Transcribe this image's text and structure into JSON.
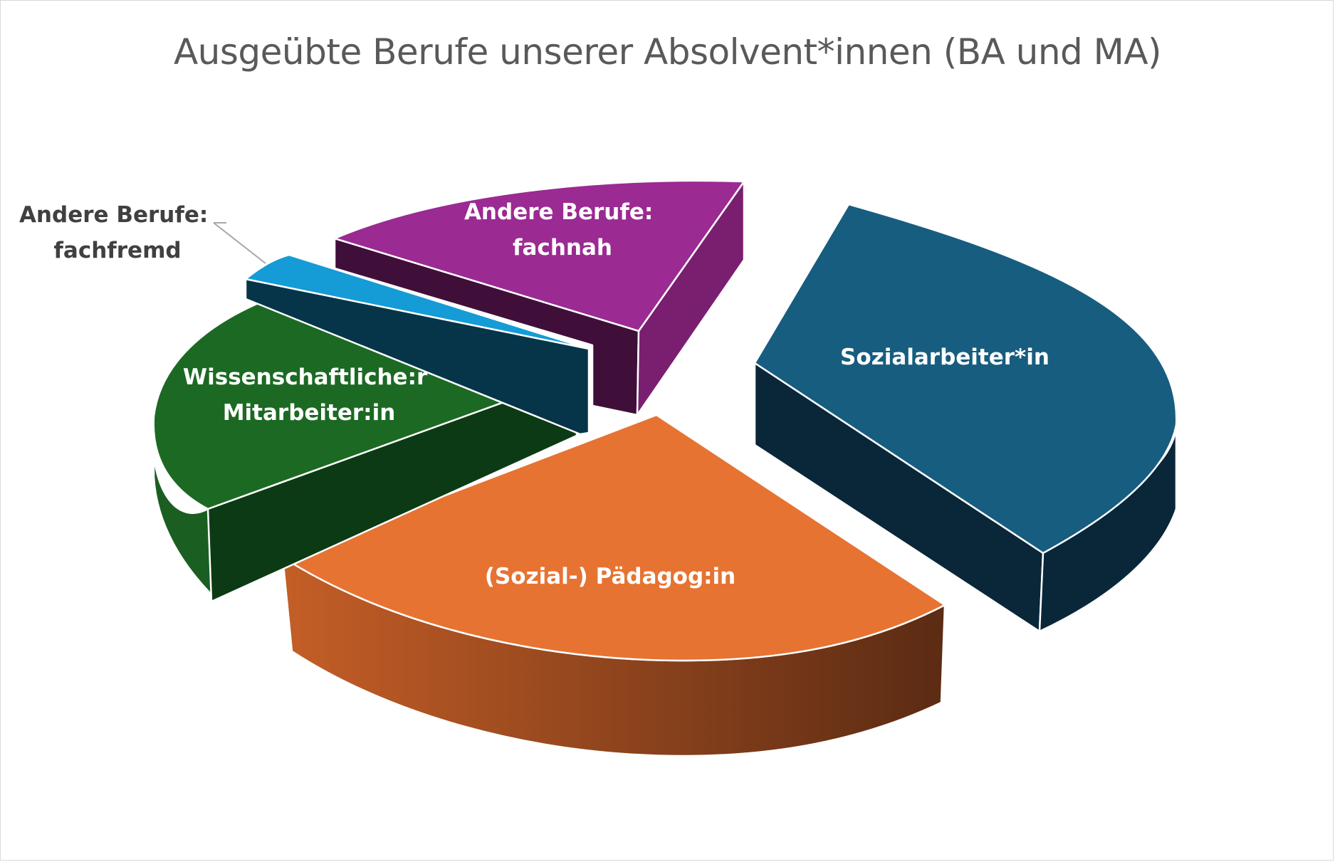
{
  "chart_data": {
    "type": "pie",
    "title": "Ausgeübte Berufe unserer Absolvent*innen (BA und MA)",
    "three_d": true,
    "exploded": true,
    "legend": "none",
    "slices": [
      {
        "label_lines": [
          "Sozialarbeiter*in"
        ],
        "value": 36,
        "color": "#175d7f",
        "side_color": "#0a2739"
      },
      {
        "label_lines": [
          "(Sozial-) Pädagog:in"
        ],
        "value": 28,
        "color": "#e67332",
        "side_color": "#5e2c14",
        "side_color_light": "#c25b26"
      },
      {
        "label_lines": [
          "Wissenschaftliche:r",
          "Mitarbeiter:in"
        ],
        "value": 18,
        "color": "#1c6923",
        "side_color": "#0c3a14"
      },
      {
        "label_lines": [
          "Andere Berufe:",
          "fachfremd"
        ],
        "value": 2,
        "color": "#159bd6",
        "side_color": "#063549"
      },
      {
        "label_lines": [
          "Andere Berufe:",
          "fachnah"
        ],
        "value": 16,
        "color": "#9b2a92",
        "side_color": "#3f0f3a",
        "side_color_light": "#7a1f70"
      }
    ]
  }
}
